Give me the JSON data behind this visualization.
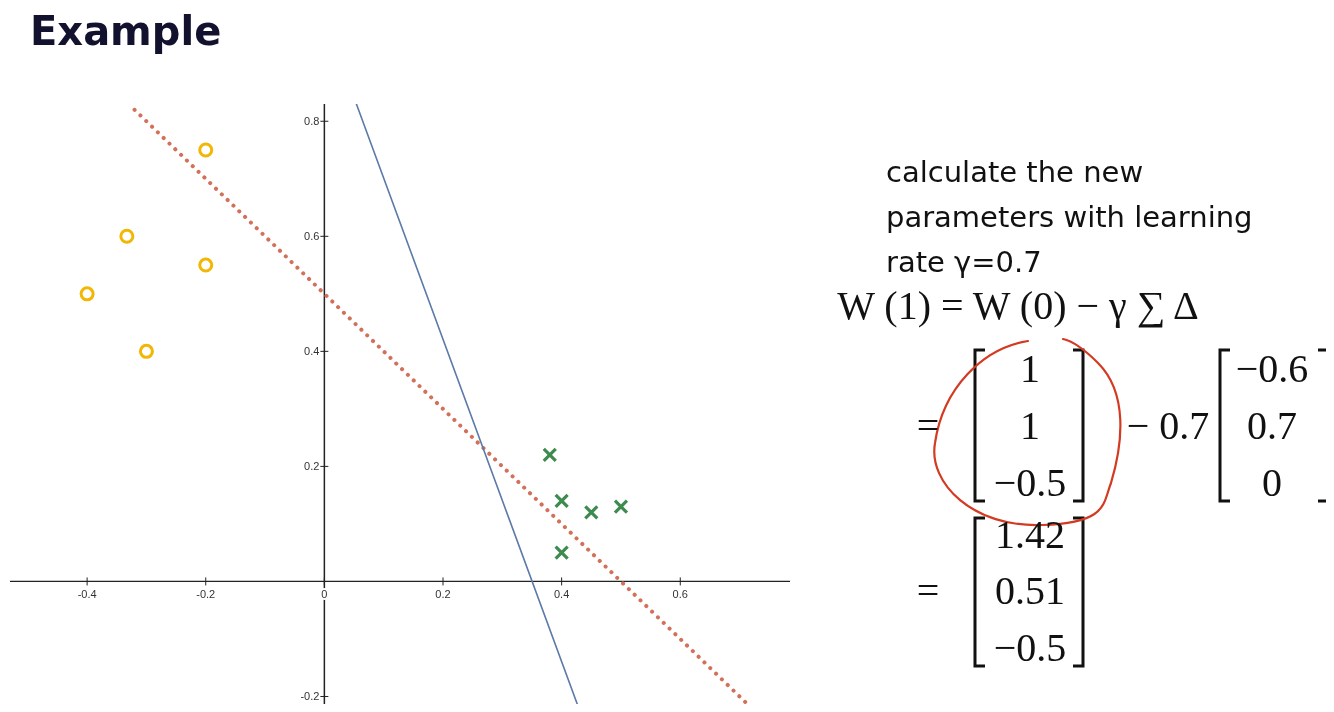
{
  "chart_data": {
    "type": "scatter",
    "title": "Example",
    "xlim": [
      -0.53,
      0.785
    ],
    "xticks": [
      -0.4,
      -0.2,
      0,
      0.2,
      0.4,
      0.6
    ],
    "ylim": [
      -0.22,
      0.83
    ],
    "yticks": [
      -0.2,
      0.2,
      0.4,
      0.6,
      0.8
    ],
    "series": [
      {
        "marker": "circle",
        "color": "#f2b705",
        "x": [
          -0.2,
          -0.333,
          -0.2,
          -0.4,
          -0.3
        ],
        "values": [
          0.75,
          0.6,
          0.55,
          0.5,
          0.4
        ]
      },
      {
        "marker": "cross",
        "color": "#3d8b4f",
        "x": [
          0.38,
          0.4,
          0.45,
          0.5,
          0.4
        ],
        "values": [
          0.22,
          0.14,
          0.12,
          0.13,
          0.05
        ]
      },
      {
        "type": "line",
        "line_style": "dotted",
        "marker": "none",
        "color": "#d2705a",
        "x": [
          -0.32,
          0.72
        ],
        "values": [
          0.82,
          -0.22
        ]
      },
      {
        "type": "line",
        "line_style": "solid",
        "marker": "none",
        "color": "#5b7aa8",
        "x": [
          0.054,
          0.427
        ],
        "values": [
          0.83,
          -0.215
        ]
      }
    ],
    "annotations": [
      "calculate the new parameters with learning rate γ=0.7",
      "W (1) = W (0) − γ ∑ Δ",
      "=",
      "1",
      "1",
      "−0.5",
      "− 0.7",
      "−0.6",
      "0.7",
      "0",
      "=",
      "1.42",
      "0.51",
      "−0.5"
    ]
  }
}
